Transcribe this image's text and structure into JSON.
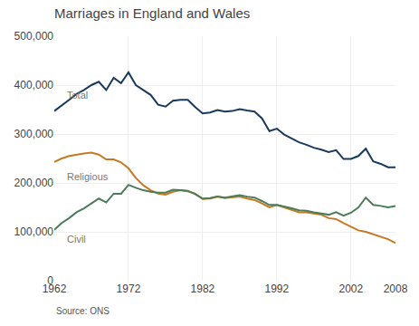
{
  "chart_data": {
    "type": "line",
    "title": "Marriages in England and Wales",
    "source": "Source: ONS",
    "grid": true,
    "x": [
      1962,
      1963,
      1964,
      1965,
      1966,
      1967,
      1968,
      1969,
      1970,
      1971,
      1972,
      1973,
      1974,
      1975,
      1976,
      1977,
      1978,
      1979,
      1980,
      1981,
      1982,
      1983,
      1984,
      1985,
      1986,
      1987,
      1988,
      1989,
      1990,
      1991,
      1992,
      1993,
      1994,
      1995,
      1996,
      1997,
      1998,
      1999,
      2000,
      2001,
      2002,
      2003,
      2004,
      2005,
      2006,
      2007,
      2008
    ],
    "series": [
      {
        "name": "Total",
        "color": "#1a3a5c",
        "values": [
          347000,
          358000,
          370000,
          382000,
          390000,
          400000,
          407000,
          390000,
          415000,
          404000,
          426000,
          400000,
          390000,
          380000,
          360000,
          356000,
          368000,
          370000,
          370000,
          355000,
          342000,
          344000,
          349000,
          346000,
          347000,
          351000,
          348000,
          346000,
          332000,
          306000,
          311000,
          299000,
          291000,
          283000,
          278000,
          272000,
          268000,
          263000,
          267000,
          249000,
          249000,
          255000,
          270000,
          244000,
          239000,
          232000,
          232000
        ]
      },
      {
        "name": "Religious",
        "color": "#c87820",
        "values": [
          243000,
          250000,
          255000,
          258000,
          260000,
          262000,
          258000,
          248000,
          248000,
          242000,
          230000,
          210000,
          195000,
          185000,
          178000,
          176000,
          182000,
          185000,
          183000,
          178000,
          167000,
          168000,
          172000,
          169000,
          170000,
          172000,
          168000,
          165000,
          158000,
          150000,
          155000,
          150000,
          145000,
          140000,
          140000,
          138000,
          135000,
          128000,
          126000,
          118000,
          110000,
          103000,
          100000,
          95000,
          90000,
          85000,
          77000
        ]
      },
      {
        "name": "Civil",
        "color": "#4a7c59",
        "values": [
          104000,
          118000,
          128000,
          140000,
          148000,
          158000,
          168000,
          160000,
          178000,
          178000,
          196000,
          190000,
          185000,
          182000,
          180000,
          180000,
          186000,
          185000,
          184000,
          177000,
          168000,
          169000,
          172000,
          170000,
          172000,
          175000,
          172000,
          170000,
          163000,
          155000,
          155000,
          152000,
          148000,
          144000,
          143000,
          140000,
          138000,
          135000,
          140000,
          133000,
          139000,
          150000,
          170000,
          155000,
          153000,
          150000,
          153000
        ]
      }
    ],
    "annotations": [
      {
        "text": "Total",
        "x": 1963.5,
        "y": 380000,
        "color": "#777777"
      },
      {
        "text": "Religious",
        "x": 1963.5,
        "y": 213000,
        "color": "#777777"
      },
      {
        "text": "Civil",
        "x": 1963.5,
        "y": 85000,
        "color": "#777777"
      }
    ],
    "xlim": [
      1962,
      2008
    ],
    "xticks": [
      1962,
      1972,
      1982,
      1992,
      2002,
      2008
    ],
    "ylim": [
      0,
      500000
    ],
    "yticks": [
      0,
      {
        "value": 100000,
        "label": "100,000"
      },
      {
        "value": 200000,
        "label": "200,000"
      },
      {
        "value": 300000,
        "label": "300,000"
      },
      {
        "value": 400000,
        "label": "400,000"
      },
      {
        "value": 500000,
        "label": "500,000"
      }
    ]
  }
}
